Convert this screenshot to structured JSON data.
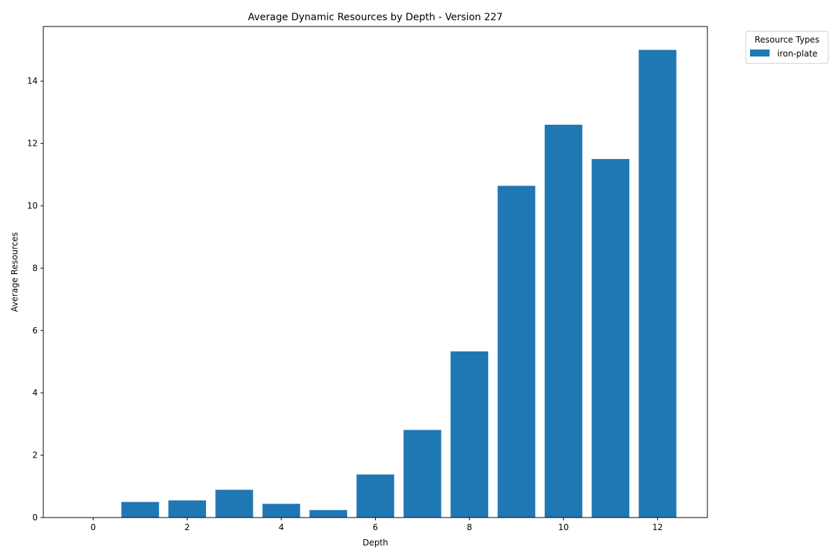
{
  "chart_data": {
    "type": "bar",
    "title": "Average Dynamic Resources by Depth - Version 227",
    "xlabel": "Depth",
    "ylabel": "Average Resources",
    "x": [
      0,
      1,
      2,
      3,
      4,
      5,
      6,
      7,
      8,
      9,
      10,
      11,
      12
    ],
    "series": [
      {
        "name": "iron-plate",
        "color": "#1f77b4",
        "values": [
          0,
          0.5,
          0.55,
          0.89,
          0.44,
          0.24,
          1.38,
          2.81,
          5.33,
          10.64,
          12.6,
          11.5,
          15.0
        ]
      }
    ],
    "xlim": [
      -1.06,
      13.06
    ],
    "ylim": [
      0,
      15.75
    ],
    "xticks": [
      0,
      2,
      4,
      6,
      8,
      10,
      12
    ],
    "yticks": [
      0,
      2,
      4,
      6,
      8,
      10,
      12,
      14
    ],
    "grid": false,
    "legend": {
      "title": "Resource Types",
      "placement": "outside-top-right"
    }
  }
}
